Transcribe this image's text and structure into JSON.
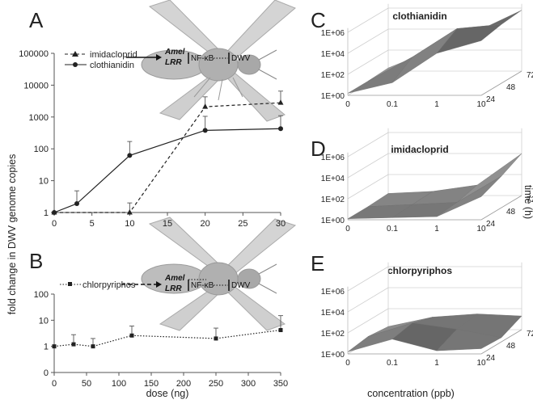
{
  "panels": {
    "A": "A",
    "B": "B",
    "C": "C",
    "D": "D",
    "E": "E"
  },
  "colors": {
    "axis": "#555555",
    "series": "#222222",
    "grid": "#d0d0d0",
    "surface_dark": "#5a5a5a",
    "surface_light": "#b5b5b5"
  },
  "shared_ylabel": "fold change in DWV genome copies",
  "time_axis_label": "time (h)",
  "pathway": {
    "gene_top": "Amel",
    "gene_bottom": "LRR",
    "nfkb": "NF-κB",
    "dwv": "DWV"
  },
  "chart_data": [
    {
      "id": "A",
      "type": "line",
      "yscale": "log",
      "xlim": [
        0,
        30
      ],
      "xticks": [
        "0",
        "5",
        "10",
        "15",
        "20",
        "25",
        "30"
      ],
      "ylim": [
        1,
        100000
      ],
      "yticks": [
        "1",
        "10",
        "100",
        "1000",
        "10000",
        "100000"
      ],
      "series": [
        {
          "name": "imidacloprid",
          "style": "dashed",
          "marker": "triangle",
          "x": [
            0,
            10,
            20,
            30
          ],
          "y": [
            1,
            1,
            2100,
            2800
          ],
          "err_up": [
            0,
            2,
            4300,
            6500
          ]
        },
        {
          "name": "clothianidin",
          "style": "solid",
          "marker": "circle",
          "x": [
            0,
            3,
            10,
            20,
            30
          ],
          "y": [
            1,
            1.9,
            62,
            380,
            430
          ],
          "err_up": [
            0,
            4.8,
            170,
            1050,
            1100
          ]
        }
      ]
    },
    {
      "id": "B",
      "type": "line",
      "yscale": "log",
      "xlim": [
        0,
        350
      ],
      "xticks": [
        "0",
        "50",
        "100",
        "150",
        "200",
        "250",
        "300",
        "350"
      ],
      "ylim": [
        0,
        100
      ],
      "yticks": [
        "0",
        "1",
        "10",
        "100"
      ],
      "xlabel": "dose (ng)",
      "series": [
        {
          "name": "chlorpyriphos",
          "style": "dotted",
          "marker": "square",
          "x": [
            0,
            30,
            60,
            120,
            250,
            350
          ],
          "y": [
            1,
            1.2,
            1,
            2.6,
            2,
            4.2
          ],
          "err_up": [
            0,
            2.8,
            2,
            6,
            5,
            15
          ]
        }
      ]
    },
    {
      "id": "C",
      "type": "surface",
      "title": "clothianidin",
      "zticks": [
        "1E+00",
        "1E+02",
        "1E+04",
        "1E+06"
      ],
      "xticks": [
        "0",
        "0.1",
        "1",
        "10"
      ],
      "yticks": [
        "24",
        "48",
        "72"
      ],
      "z_log10": [
        [
          0.2,
          1.2,
          4.0,
          5.2
        ],
        [
          0.2,
          2.5,
          5.2,
          5.6
        ],
        [
          0.3,
          2.0,
          3.8,
          5.8
        ]
      ]
    },
    {
      "id": "D",
      "type": "surface",
      "title": "imidacloprid",
      "zticks": [
        "1E+00",
        "1E+02",
        "1E+04",
        "1E+06"
      ],
      "xticks": [
        "0",
        "0.1",
        "1",
        "10"
      ],
      "yticks": [
        "24",
        "48",
        "72"
      ],
      "z_log10": [
        [
          0.1,
          0.2,
          0.3,
          2.2
        ],
        [
          0.1,
          0.3,
          0.5,
          3.0
        ],
        [
          0.2,
          0.4,
          1.0,
          4.0
        ]
      ]
    },
    {
      "id": "E",
      "type": "surface",
      "title": "chlorpyriphos",
      "zticks": [
        "1E+00",
        "1E+02",
        "1E+04",
        "1E+06"
      ],
      "xticks": [
        "0",
        "0.1",
        "1",
        "10"
      ],
      "yticks": [
        "24",
        "48",
        "72"
      ],
      "xlabel": "concentration (ppb)",
      "z_log10": [
        [
          0.2,
          1.4,
          0.3,
          0.5
        ],
        [
          0.5,
          1.8,
          1.2,
          0.4
        ],
        [
          0.3,
          1.2,
          1.5,
          1.3
        ]
      ]
    }
  ]
}
